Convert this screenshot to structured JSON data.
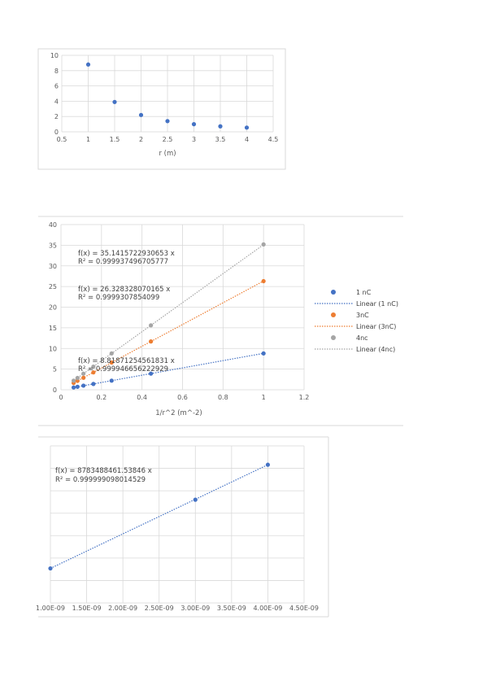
{
  "chart_data": [
    {
      "type": "scatter",
      "title": "",
      "xlabel": "r (m)",
      "ylabel": "",
      "xlim": [
        0.5,
        4.5
      ],
      "ylim": [
        0,
        10
      ],
      "x_ticks": [
        "0.5",
        "1",
        "1.5",
        "2",
        "2.5",
        "3",
        "3.5",
        "4",
        "4.5"
      ],
      "y_ticks": [
        "0",
        "2",
        "4",
        "6",
        "8",
        "10"
      ],
      "grid": true,
      "colors": {
        "points": "#4472c4"
      },
      "series": [
        {
          "x": [
            1,
            1.5,
            2,
            2.5,
            3,
            3.5,
            4
          ],
          "y": [
            8.8,
            3.9,
            2.2,
            1.4,
            1.0,
            0.72,
            0.55
          ]
        }
      ]
    },
    {
      "type": "scatter",
      "title": "",
      "xlabel": "1/r^2 (m^-2)",
      "ylabel": "",
      "xlim": [
        0,
        1.2
      ],
      "ylim": [
        0,
        40
      ],
      "x_ticks": [
        "0",
        "0.2",
        "0.4",
        "0.6",
        "0.8",
        "1",
        "1.2"
      ],
      "y_ticks": [
        "0",
        "5",
        "10",
        "15",
        "20",
        "25",
        "30",
        "35",
        "40"
      ],
      "grid": true,
      "legend_position": "right",
      "series": [
        {
          "name": "1 nC",
          "color": "#4472c4",
          "x": [
            1,
            0.444,
            0.25,
            0.16,
            0.111,
            0.0816,
            0.0625
          ],
          "y": [
            8.8,
            3.9,
            2.2,
            1.4,
            1.0,
            0.72,
            0.55
          ],
          "trendline_label": "Linear (1 nC)",
          "slope": 8.81871254561831,
          "equation": "f(x) = 8.81871254561831 x",
          "r2": "R² = 0.999946656222929"
        },
        {
          "name": "3nC",
          "color": "#ed7d31",
          "x": [
            1,
            0.444,
            0.25,
            0.16,
            0.111,
            0.0816,
            0.0625
          ],
          "y": [
            26.3,
            11.7,
            6.6,
            4.2,
            2.9,
            2.15,
            1.65
          ],
          "trendline_label": "Linear (3nC)",
          "slope": 26.328328070165,
          "equation": "f(x) = 26.328328070165 x",
          "r2": "R² = 0.9999307854099"
        },
        {
          "name": "4nc",
          "color": "#a5a5a5",
          "x": [
            1,
            0.444,
            0.25,
            0.16,
            0.111,
            0.0816,
            0.0625
          ],
          "y": [
            35.2,
            15.6,
            8.8,
            5.6,
            3.9,
            2.87,
            2.2
          ],
          "trendline_label": "Linear (4nc)",
          "slope": 35.1415722930653,
          "equation": "f(x) = 35.1415722930653 x",
          "r2": "R² = 0.999937496705777"
        }
      ]
    },
    {
      "type": "scatter",
      "title": "",
      "xlabel": "",
      "ylabel": "",
      "xlim": [
        1e-09,
        4.5e-09
      ],
      "x_ticks": [
        "1.00E-09",
        "1.50E-09",
        "2.00E-09",
        "2.50E-09",
        "3.00E-09",
        "3.50E-09",
        "4.00E-09",
        "4.50E-09"
      ],
      "grid": true,
      "series": [
        {
          "color": "#4472c4",
          "x": [
            1e-09,
            3e-09,
            4e-09
          ],
          "y": [
            8.8,
            26.3,
            35.2
          ],
          "slope": 8783488461.53846,
          "equation": "f(x) = 8783488461.53846 x",
          "r2": "R² = 0.999999098014529"
        }
      ]
    }
  ]
}
